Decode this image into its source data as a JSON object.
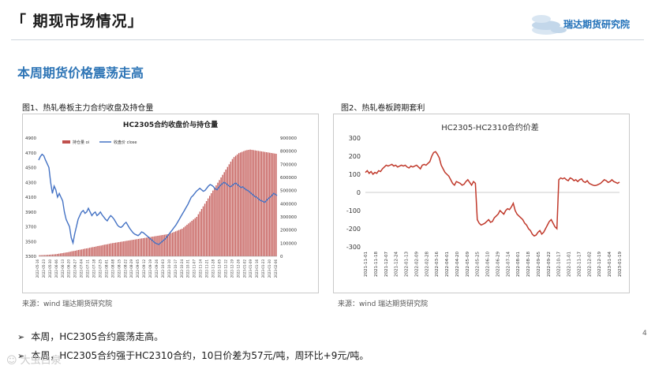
{
  "header": {
    "title": "「 期现市场情况」",
    "brand": "瑞达期货研究院"
  },
  "subtitle": "本周期货价格震荡走高",
  "figure1": {
    "caption": "图1、热轧卷板主力合约收盘及持仓量",
    "source": "来源：wind   瑞达期货研究院"
  },
  "figure2": {
    "caption": "图2、热轧卷板跨期套利",
    "source": "来源：wind   瑞达期货研究院"
  },
  "bullets": [
    "本周，HC2305合约震荡走高。",
    "本周，HC2305合约强于HC2310合约，10日价差为57元/吨，周环比+9元/吨。"
  ],
  "bullet_marker": "➢",
  "page_number": "4",
  "watermark": "☺ 大虫白泉",
  "colors": {
    "accent": "#2e75b6",
    "line_blue": "#4472c4",
    "bar_red": "#c0504d",
    "spread_red": "#c0392b"
  },
  "chart_data": [
    {
      "type": "bar+line",
      "title": "HC2305合约收盘价与持仓量",
      "legend": [
        "持仓量 oi",
        "收盘价 close"
      ],
      "legend_position": "top",
      "y_left": {
        "min": 3300,
        "max": 4900,
        "ticks": [
          3300,
          3500,
          3700,
          3900,
          4100,
          4300,
          4500,
          4700,
          4900
        ]
      },
      "y_right": {
        "min": 0,
        "max": 900000,
        "ticks": [
          0,
          100000,
          200000,
          300000,
          400000,
          500000,
          600000,
          700000,
          800000,
          900000
        ]
      },
      "x_tick_labels": [
        "2022-05-16",
        "2022-05-23",
        "2022-05-30",
        "2022-06-06",
        "2022-06-13",
        "2022-06-20",
        "2022-06-27",
        "2022-07-04",
        "2022-07-11",
        "2022-07-18",
        "2022-07-25",
        "2022-08-01",
        "2022-08-08",
        "2022-08-15",
        "2022-08-22",
        "2022-08-29",
        "2022-09-05",
        "2022-09-12",
        "2022-09-19",
        "2022-09-26",
        "2022-10-03",
        "2022-10-10",
        "2022-10-17",
        "2022-10-24",
        "2022-10-31",
        "2022-11-07",
        "2022-11-14",
        "2022-11-21",
        "2022-11-28",
        "2022-12-05",
        "2022-12-12",
        "2022-12-19",
        "2022-12-26",
        "2023-01-02",
        "2023-01-09",
        "2023-01-16",
        "2023-01-23",
        "2023-01-30",
        "2023-02-06"
      ],
      "oi_series": [
        8000,
        8500,
        9000,
        9500,
        10000,
        11000,
        12000,
        13000,
        14000,
        15000,
        16000,
        18000,
        20000,
        22000,
        24000,
        26000,
        28000,
        30000,
        32000,
        35000,
        38000,
        40000,
        42000,
        45000,
        48000,
        50000,
        52000,
        55000,
        58000,
        60000,
        62000,
        65000,
        68000,
        70000,
        72000,
        75000,
        78000,
        80000,
        82000,
        85000,
        88000,
        90000,
        92000,
        95000,
        98000,
        100000,
        102000,
        104000,
        106000,
        108000,
        110000,
        112000,
        114000,
        116000,
        118000,
        120000,
        122000,
        124000,
        126000,
        128000,
        130000,
        132000,
        134000,
        136000,
        138000,
        140000,
        142000,
        144000,
        146000,
        148000,
        150000,
        152000,
        154000,
        156000,
        158000,
        160000,
        162000,
        164000,
        166000,
        168000,
        170000,
        175000,
        180000,
        185000,
        190000,
        195000,
        200000,
        205000,
        210000,
        220000,
        230000,
        240000,
        250000,
        260000,
        270000,
        280000,
        290000,
        300000,
        320000,
        340000,
        360000,
        380000,
        400000,
        420000,
        440000,
        460000,
        480000,
        500000,
        520000,
        540000,
        560000,
        580000,
        600000,
        620000,
        640000,
        660000,
        680000,
        700000,
        720000,
        740000,
        755000,
        765000,
        775000,
        785000,
        790000,
        795000,
        800000,
        805000,
        808000,
        810000,
        812000,
        810000,
        808000,
        806000,
        804000,
        802000,
        800000,
        798000,
        796000,
        794000,
        792000,
        790000,
        788000,
        786000,
        784000,
        782000,
        780000
      ],
      "close_series": [
        4600,
        4650,
        4680,
        4660,
        4600,
        4550,
        4500,
        4300,
        4150,
        4250,
        4200,
        4100,
        4150,
        4100,
        4050,
        3900,
        3800,
        3750,
        3700,
        3550,
        3480,
        3600,
        3700,
        3800,
        3850,
        3900,
        3920,
        3880,
        3900,
        3950,
        3900,
        3850,
        3880,
        3900,
        3850,
        3870,
        3900,
        3860,
        3830,
        3800,
        3780,
        3820,
        3850,
        3830,
        3800,
        3760,
        3720,
        3700,
        3690,
        3710,
        3740,
        3760,
        3720,
        3680,
        3650,
        3620,
        3600,
        3590,
        3580,
        3600,
        3630,
        3620,
        3600,
        3580,
        3560,
        3540,
        3520,
        3500,
        3480,
        3470,
        3460,
        3480,
        3500,
        3520,
        3540,
        3570,
        3600,
        3630,
        3660,
        3690,
        3720,
        3760,
        3800,
        3840,
        3880,
        3920,
        3960,
        4000,
        4050,
        4100,
        4120,
        4150,
        4180,
        4200,
        4220,
        4200,
        4180,
        4190,
        4220,
        4250,
        4270,
        4260,
        4240,
        4210,
        4200,
        4230,
        4260,
        4280,
        4300,
        4290,
        4270,
        4250,
        4240,
        4260,
        4280,
        4290,
        4270,
        4250,
        4230,
        4240,
        4220,
        4200,
        4190,
        4170,
        4150,
        4130,
        4110,
        4100,
        4080,
        4060,
        4050,
        4040,
        4030,
        4060,
        4080,
        4100,
        4120,
        4150,
        4140,
        4120
      ]
    },
    {
      "type": "line",
      "title": "HC2305-HC2310合约价差",
      "y": {
        "min": -300,
        "max": 300,
        "ticks": [
          -300,
          -200,
          -100,
          0,
          100,
          200,
          300
        ]
      },
      "x_tick_labels": [
        "2021-11-01",
        "2021-11-18",
        "2021-12-07",
        "2021-12-24",
        "2022-01-13",
        "2022-02-09",
        "2022-02-28",
        "2022-03-16",
        "2022-04-01",
        "2022-04-20",
        "2022-05-09",
        "2022-05-25",
        "2022-06-10",
        "2022-06-29",
        "2022-07-14",
        "2022-08-01",
        "2022-08-18",
        "2022-09-05",
        "2022-09-22",
        "2022-10-17",
        "2022-11-01",
        "2022-11-17",
        "2022-12-02",
        "2022-12-19",
        "2023-01-04",
        "2023-01-19"
      ],
      "values": [
        110,
        120,
        105,
        115,
        100,
        110,
        105,
        120,
        115,
        130,
        140,
        150,
        145,
        150,
        155,
        145,
        150,
        140,
        145,
        150,
        145,
        150,
        140,
        135,
        145,
        140,
        145,
        150,
        140,
        130,
        150,
        155,
        150,
        160,
        170,
        200,
        220,
        225,
        210,
        190,
        150,
        130,
        110,
        100,
        90,
        70,
        50,
        40,
        60,
        55,
        50,
        40,
        45,
        60,
        70,
        55,
        40,
        60,
        50,
        -150,
        -170,
        -180,
        -175,
        -170,
        -160,
        -150,
        -165,
        -160,
        -140,
        -130,
        -120,
        -100,
        -110,
        -120,
        -100,
        -90,
        -95,
        -80,
        -60,
        -100,
        -120,
        -130,
        -140,
        -150,
        -170,
        -180,
        -200,
        -210,
        -230,
        -240,
        -235,
        -220,
        -210,
        -230,
        -220,
        -200,
        -180,
        -160,
        -150,
        -170,
        -190,
        -200,
        70,
        80,
        75,
        80,
        70,
        65,
        80,
        75,
        65,
        70,
        60,
        70,
        75,
        60,
        55,
        65,
        50,
        45,
        40,
        38,
        40,
        45,
        50,
        60,
        70,
        65,
        55,
        60,
        70,
        60,
        55,
        50,
        57
      ]
    }
  ]
}
